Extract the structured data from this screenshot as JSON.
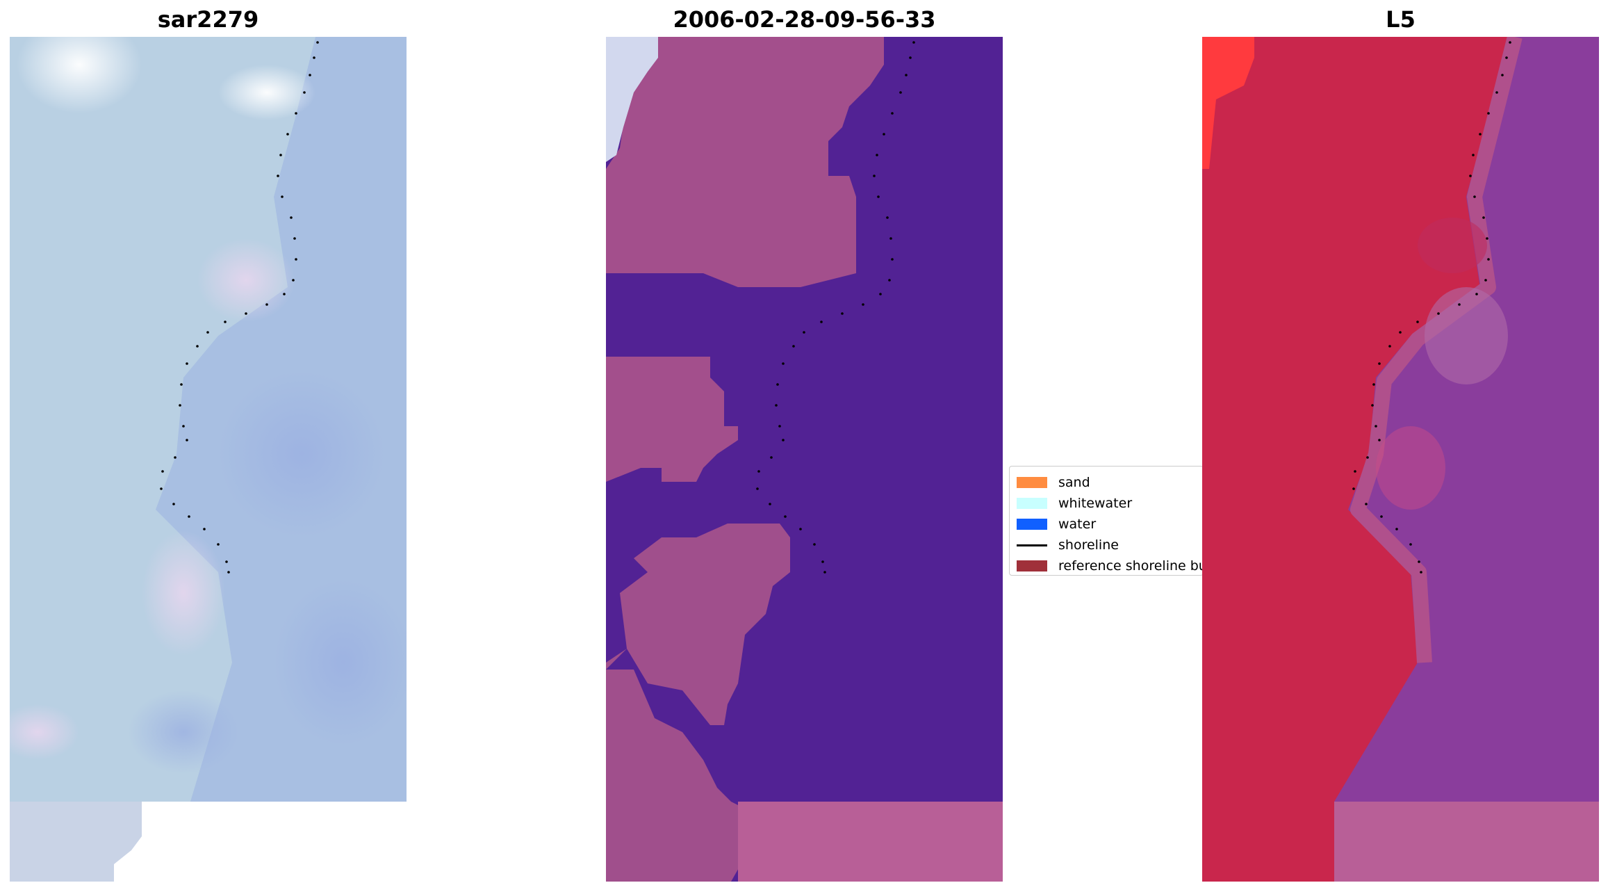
{
  "panels": [
    {
      "title": "sar2279",
      "kind": "rgb"
    },
    {
      "title": "2006-02-28-09-56-33",
      "kind": "classified"
    },
    {
      "title": "L5",
      "kind": "index"
    }
  ],
  "legend": {
    "items": [
      {
        "label": "sand",
        "type": "patch",
        "color": "#ff8c40"
      },
      {
        "label": "whitewater",
        "type": "patch",
        "color": "#c8ffff"
      },
      {
        "label": "water",
        "type": "patch",
        "color": "#1060ff"
      },
      {
        "label": "shoreline",
        "type": "line",
        "color": "#000000"
      },
      {
        "label": "reference shoreline buffer",
        "type": "patch",
        "color": "#a0303a"
      }
    ]
  },
  "colors": {
    "rgb_base": "#a7bde0",
    "rgb_land": "#c6d6e6",
    "class_water": "#522294",
    "class_sand": "#b7659b",
    "class_white": "#d8def0",
    "index_land": "#c8284c",
    "index_water": "#8a3d9c",
    "index_bright": "#ff3b40",
    "shoreline_dots": "#000000"
  }
}
